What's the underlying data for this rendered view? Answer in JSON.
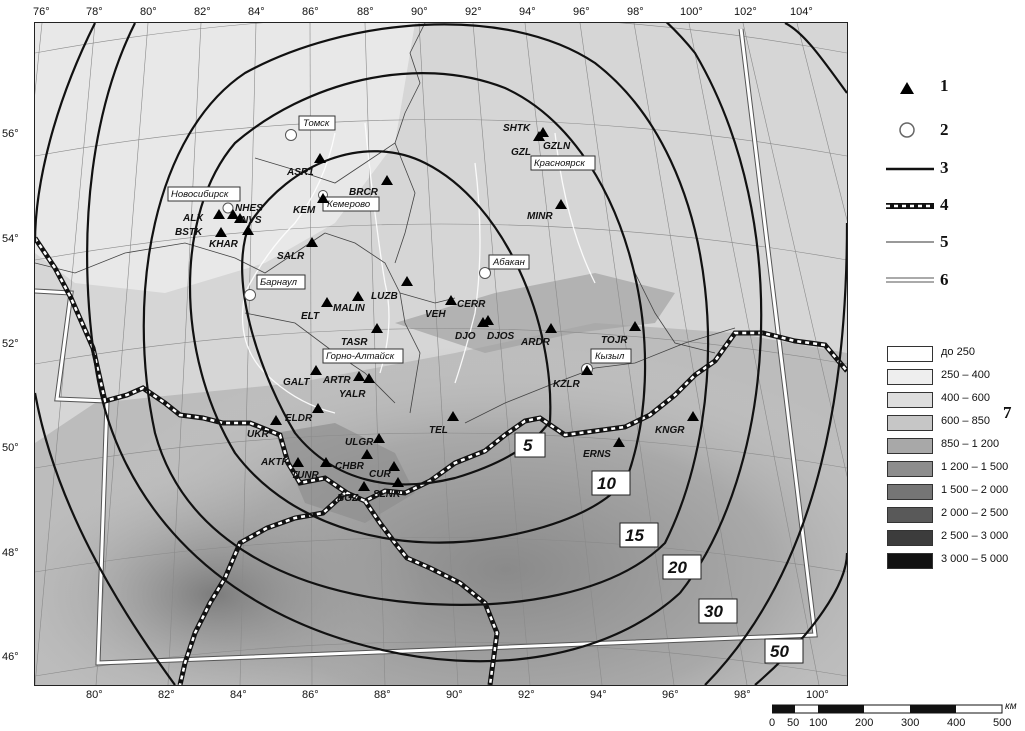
{
  "top_ticks": [
    "76°",
    "78°",
    "80°",
    "82°",
    "84°",
    "86°",
    "88°",
    "90°",
    "92°",
    "94°",
    "96°",
    "98°",
    "100°",
    "102°",
    "104°"
  ],
  "bottom_ticks": [
    "80°",
    "82°",
    "84°",
    "86°",
    "88°",
    "90°",
    "92°",
    "94°",
    "96°",
    "98°",
    "100°"
  ],
  "left_ticks": [
    "56°",
    "54°",
    "52°",
    "50°",
    "48°",
    "46°"
  ],
  "stations": [
    "SHTK",
    "GZLN",
    "GZL",
    "ASR1",
    "BRCR",
    "MINR",
    "NHES",
    "ALX",
    "NVS",
    "BSTK",
    "KHAR",
    "KEM",
    "SALR",
    "LUZB",
    "MALIN",
    "ELT",
    "VEH",
    "CERR",
    "DJO",
    "DJOS",
    "ARDR",
    "TOJR",
    "TASR",
    "GALT",
    "ARTR",
    "YALR",
    "KZLR",
    "ELDR",
    "UKR",
    "TEL",
    "KNGR",
    "ULGR",
    "ERNS",
    "AKTK",
    "TUNR",
    "CHBR",
    "CUR",
    "BGZ",
    "SLNR"
  ],
  "cities": [
    "Томск",
    "Красноярск",
    "Новосибирск",
    "Кемерово",
    "Абакан",
    "Барнаул",
    "Горно-Алтайск",
    "Кызыл"
  ],
  "isoline_labels": [
    "5",
    "10",
    "15",
    "20",
    "30",
    "50"
  ],
  "legend_items": [
    "1",
    "2",
    "3",
    "4",
    "5",
    "6",
    "7"
  ],
  "elevation_classes": [
    {
      "label": "до 250",
      "color": "#ffffff"
    },
    {
      "label": "250 – 400",
      "color": "#eeeeee"
    },
    {
      "label": "400 – 600",
      "color": "#dddddd"
    },
    {
      "label": "600 – 850",
      "color": "#c6c6c6"
    },
    {
      "label": "850 – 1 200",
      "color": "#a8a8a8"
    },
    {
      "label": "1 200 – 1 500",
      "color": "#8d8d8d"
    },
    {
      "label": "1 500 – 2 000",
      "color": "#757575"
    },
    {
      "label": "2 000 – 2 500",
      "color": "#595959"
    },
    {
      "label": "2 500 – 3 000",
      "color": "#3c3c3c"
    },
    {
      "label": "3 000 – 5 000",
      "color": "#111111"
    }
  ],
  "scale_bar": {
    "ticks": [
      "0",
      "50",
      "100",
      "200",
      "300",
      "400",
      "500"
    ],
    "unit": "км"
  }
}
